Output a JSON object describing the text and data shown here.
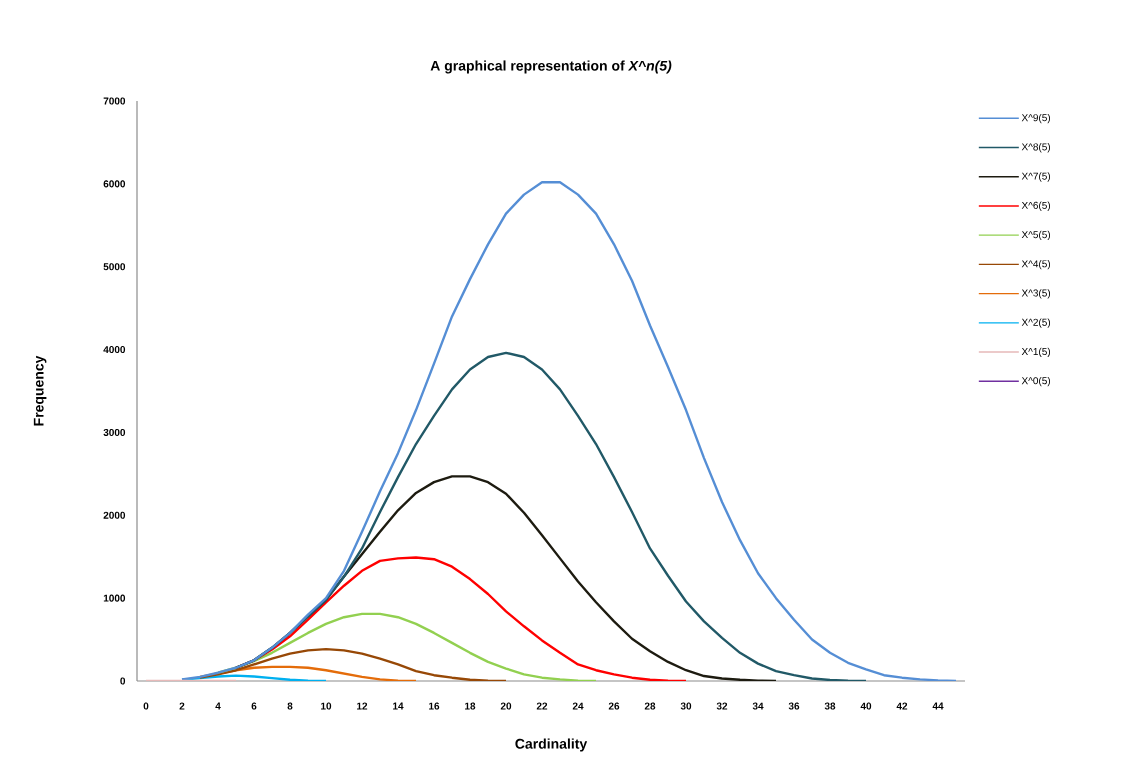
{
  "chart_data": {
    "type": "line",
    "title": "A graphical representation of *X^n(5)*",
    "xlabel": "Cardinality",
    "ylabel": "Frequency",
    "x": [
      0,
      1,
      2,
      3,
      4,
      5,
      6,
      7,
      8,
      9,
      10,
      11,
      12,
      13,
      14,
      15,
      16,
      17,
      18,
      19,
      20,
      21,
      22,
      23,
      24,
      25,
      26,
      27,
      28,
      29,
      30,
      31,
      32,
      33,
      34,
      35,
      36,
      37,
      38,
      39,
      40,
      41,
      42,
      43,
      44,
      45
    ],
    "xlim": [
      -0.5,
      45.5
    ],
    "xticks": [
      0,
      2,
      4,
      6,
      8,
      10,
      12,
      14,
      16,
      18,
      20,
      22,
      24,
      26,
      28,
      30,
      32,
      34,
      36,
      38,
      40,
      42,
      44
    ],
    "ylim": [
      0,
      7000
    ],
    "yticks": [
      0,
      1000,
      2000,
      3000,
      4000,
      5000,
      6000,
      7000
    ],
    "legend": "right",
    "marker": "none",
    "line_style": "solid",
    "series": [
      {
        "name": "X^9(5)",
        "color": "#558ed5",
        "values": [
          null,
          null,
          20,
          50,
          100,
          160,
          250,
          400,
          580,
          800,
          1000,
          1330,
          1800,
          2290,
          2750,
          3270,
          3830,
          4400,
          4850,
          5270,
          5640,
          5870,
          6020,
          6020,
          5870,
          5640,
          5270,
          4830,
          4290,
          3790,
          3270,
          2690,
          2160,
          1700,
          1300,
          1000,
          740,
          500,
          340,
          220,
          140,
          70,
          40,
          20,
          8,
          2
        ]
      },
      {
        "name": "X^8(5)",
        "color": "#215967",
        "values": [
          null,
          null,
          null,
          null,
          null,
          160,
          250,
          400,
          580,
          780,
          980,
          1260,
          1600,
          2040,
          2460,
          2860,
          3200,
          3520,
          3760,
          3910,
          3960,
          3910,
          3760,
          3520,
          3200,
          2860,
          2460,
          2040,
          1600,
          1270,
          960,
          720,
          520,
          340,
          210,
          120,
          70,
          30,
          12,
          4,
          1,
          null,
          null,
          null,
          null,
          null
        ]
      },
      {
        "name": "X^7(5)",
        "color": "#1d1b10",
        "values": [
          null,
          null,
          null,
          null,
          null,
          160,
          250,
          400,
          580,
          780,
          980,
          1260,
          1530,
          1800,
          2060,
          2270,
          2400,
          2470,
          2470,
          2400,
          2260,
          2030,
          1760,
          1480,
          1200,
          950,
          720,
          510,
          360,
          230,
          130,
          60,
          30,
          15,
          5,
          1,
          null,
          null,
          null,
          null,
          null,
          null,
          null,
          null,
          null,
          null
        ]
      },
      {
        "name": "X^6(5)",
        "color": "#ff0000",
        "values": [
          null,
          null,
          null,
          null,
          null,
          160,
          250,
          380,
          540,
          740,
          950,
          1150,
          1330,
          1450,
          1480,
          1490,
          1470,
          1380,
          1230,
          1050,
          840,
          660,
          490,
          340,
          200,
          130,
          80,
          40,
          15,
          5,
          1,
          null,
          null,
          null,
          null,
          null,
          null,
          null,
          null,
          null,
          null,
          null,
          null,
          null,
          null,
          null
        ]
      },
      {
        "name": "X^5(5)",
        "color": "#92d050",
        "values": [
          null,
          null,
          null,
          null,
          100,
          160,
          240,
          340,
          460,
          580,
          690,
          770,
          810,
          810,
          770,
          690,
          580,
          460,
          340,
          230,
          150,
          80,
          40,
          20,
          5,
          1,
          null,
          null,
          null,
          null,
          null,
          null,
          null,
          null,
          null,
          null,
          null,
          null,
          null,
          null,
          null,
          null,
          null,
          null,
          null,
          null
        ]
      },
      {
        "name": "X^4(5)",
        "color": "#974806",
        "values": [
          null,
          null,
          null,
          40,
          80,
          130,
          200,
          270,
          330,
          370,
          385,
          370,
          330,
          270,
          200,
          120,
          70,
          40,
          15,
          5,
          1,
          null,
          null,
          null,
          null,
          null,
          null,
          null,
          null,
          null,
          null,
          null,
          null,
          null,
          null,
          null,
          null,
          null,
          null,
          null,
          null,
          null,
          null,
          null,
          null,
          null
        ]
      },
      {
        "name": "X^3(5)",
        "color": "#e46c0a",
        "values": [
          null,
          null,
          null,
          50,
          90,
          130,
          160,
          170,
          170,
          160,
          130,
          90,
          50,
          20,
          5,
          1,
          null,
          null,
          null,
          null,
          null,
          null,
          null,
          null,
          null,
          null,
          null,
          null,
          null,
          null,
          null,
          null,
          null,
          null,
          null,
          null,
          null,
          null,
          null,
          null,
          null,
          null,
          null,
          null,
          null,
          null
        ]
      },
      {
        "name": "X^2(5)",
        "color": "#00b0f0",
        "values": [
          null,
          null,
          15,
          35,
          55,
          65,
          55,
          35,
          15,
          5,
          1,
          null,
          null,
          null,
          null,
          null,
          null,
          null,
          null,
          null,
          null,
          null,
          null,
          null,
          null,
          null,
          null,
          null,
          null,
          null,
          null,
          null,
          null,
          null,
          null,
          null,
          null,
          null,
          null,
          null,
          null,
          null,
          null,
          null,
          null,
          null
        ]
      },
      {
        "name": "X^1(5)",
        "color": "#e6b9b8",
        "values": [
          1,
          1,
          1,
          1,
          1,
          1,
          null,
          null,
          null,
          null,
          null,
          null,
          null,
          null,
          null,
          null,
          null,
          null,
          null,
          null,
          null,
          null,
          null,
          null,
          null,
          null,
          null,
          null,
          null,
          null,
          null,
          null,
          null,
          null,
          null,
          null,
          null,
          null,
          null,
          null,
          null,
          null,
          null,
          null,
          null,
          null
        ]
      },
      {
        "name": "X^0(5)",
        "color": "#7030a0",
        "values": [
          null,
          null,
          null,
          null,
          null,
          null,
          null,
          null,
          null,
          null,
          null,
          null,
          null,
          null,
          null,
          null,
          null,
          null,
          null,
          null,
          null,
          null,
          null,
          null,
          null,
          null,
          null,
          null,
          null,
          null,
          null,
          null,
          null,
          null,
          null,
          null,
          null,
          null,
          null,
          null,
          null,
          null,
          null,
          null,
          null,
          null
        ]
      }
    ]
  }
}
